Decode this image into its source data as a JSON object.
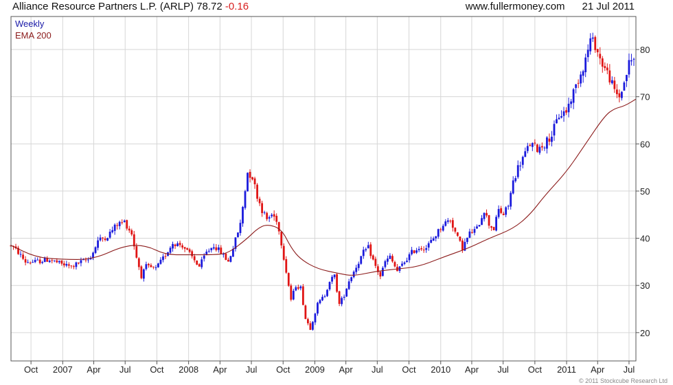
{
  "header": {
    "instrument": "Alliance Resource Partners L.P. (ARLP)",
    "last_price": "78.72",
    "change": "-0.16",
    "source": "www.fullermoney.com",
    "date": "21 Jul 2011"
  },
  "copyright": "© 2011 Stockcube Research Ltd",
  "colors": {
    "up": "#1a1adc",
    "down": "#e01414",
    "ema": "#8b1a1a",
    "grid": "#d6d6d6",
    "legend_weekly": "#1a1aa8",
    "legend_ema": "#8b1a1a"
  },
  "chart_data": {
    "type": "candlestick",
    "frequency": "Weekly",
    "x_start": "2006-08-04",
    "x_end": "2011-07-21",
    "ylim": [
      14,
      87
    ],
    "yticks": [
      20,
      30,
      40,
      50,
      60,
      70,
      80
    ],
    "grid": true,
    "legend": {
      "position": "top-left",
      "entries": [
        "Weekly",
        "EMA 200"
      ]
    },
    "x_ticks": [
      {
        "label": "Oct",
        "date": "2006-10-01"
      },
      {
        "label": "2007",
        "date": "2007-01-01"
      },
      {
        "label": "Apr",
        "date": "2007-04-01"
      },
      {
        "label": "Jul",
        "date": "2007-07-01"
      },
      {
        "label": "Oct",
        "date": "2007-10-01"
      },
      {
        "label": "2008",
        "date": "2008-01-01"
      },
      {
        "label": "Apr",
        "date": "2008-04-01"
      },
      {
        "label": "Jul",
        "date": "2008-07-01"
      },
      {
        "label": "Oct",
        "date": "2008-10-01"
      },
      {
        "label": "2009",
        "date": "2009-01-01"
      },
      {
        "label": "Apr",
        "date": "2009-04-01"
      },
      {
        "label": "Jul",
        "date": "2009-07-01"
      },
      {
        "label": "Oct",
        "date": "2009-10-01"
      },
      {
        "label": "2010",
        "date": "2010-01-01"
      },
      {
        "label": "Apr",
        "date": "2010-04-01"
      },
      {
        "label": "Jul",
        "date": "2010-07-01"
      },
      {
        "label": "Oct",
        "date": "2010-10-01"
      },
      {
        "label": "2011",
        "date": "2011-01-01"
      },
      {
        "label": "Apr",
        "date": "2011-04-01"
      },
      {
        "label": "Jul",
        "date": "2011-07-01"
      }
    ],
    "price_path": [
      [
        "2006-08-04",
        38.5
      ],
      [
        "2006-08-25",
        37
      ],
      [
        "2006-09-15",
        35
      ],
      [
        "2006-10-13",
        35
      ],
      [
        "2006-11-24",
        35.5
      ],
      [
        "2006-12-29",
        34.5
      ],
      [
        "2007-01-26",
        34
      ],
      [
        "2007-02-23",
        35
      ],
      [
        "2007-03-16",
        35.5
      ],
      [
        "2007-03-30",
        37
      ],
      [
        "2007-04-13",
        39.5
      ],
      [
        "2007-05-11",
        40.5
      ],
      [
        "2007-06-08",
        43
      ],
      [
        "2007-06-29",
        43.5
      ],
      [
        "2007-07-20",
        41
      ],
      [
        "2007-08-03",
        36
      ],
      [
        "2007-08-17",
        32
      ],
      [
        "2007-08-31",
        34
      ],
      [
        "2007-09-28",
        33.5
      ],
      [
        "2007-10-26",
        36.5
      ],
      [
        "2007-11-16",
        39
      ],
      [
        "2007-12-14",
        38.5
      ],
      [
        "2008-01-11",
        36
      ],
      [
        "2008-02-01",
        34
      ],
      [
        "2008-02-22",
        37
      ],
      [
        "2008-03-14",
        38.5
      ],
      [
        "2008-04-04",
        37
      ],
      [
        "2008-04-25",
        35
      ],
      [
        "2008-05-09",
        38
      ],
      [
        "2008-05-30",
        43
      ],
      [
        "2008-06-20",
        54
      ],
      [
        "2008-07-04",
        53
      ],
      [
        "2008-07-18",
        49
      ],
      [
        "2008-08-01",
        46
      ],
      [
        "2008-08-15",
        44
      ],
      [
        "2008-08-29",
        45
      ],
      [
        "2008-09-12",
        44
      ],
      [
        "2008-09-26",
        39
      ],
      [
        "2008-10-10",
        33
      ],
      [
        "2008-10-24",
        27
      ],
      [
        "2008-11-07",
        30
      ],
      [
        "2008-11-21",
        29.5
      ],
      [
        "2008-12-05",
        23
      ],
      [
        "2008-12-19",
        21
      ],
      [
        "2009-01-09",
        26
      ],
      [
        "2009-01-30",
        28
      ],
      [
        "2009-02-13",
        31
      ],
      [
        "2009-02-27",
        32
      ],
      [
        "2009-03-13",
        26
      ],
      [
        "2009-03-27",
        28
      ],
      [
        "2009-04-10",
        31
      ],
      [
        "2009-04-24",
        33
      ],
      [
        "2009-05-08",
        35
      ],
      [
        "2009-05-22",
        37
      ],
      [
        "2009-06-05",
        38
      ],
      [
        "2009-06-26",
        34
      ],
      [
        "2009-07-10",
        32
      ],
      [
        "2009-07-24",
        35
      ],
      [
        "2009-08-07",
        36
      ],
      [
        "2009-08-28",
        33
      ],
      [
        "2009-09-18",
        35
      ],
      [
        "2009-10-09",
        37
      ],
      [
        "2009-10-30",
        38
      ],
      [
        "2009-11-20",
        38
      ],
      [
        "2009-12-11",
        40
      ],
      [
        "2010-01-08",
        43
      ],
      [
        "2010-01-29",
        44
      ],
      [
        "2010-02-19",
        40
      ],
      [
        "2010-03-05",
        38
      ],
      [
        "2010-03-26",
        41
      ],
      [
        "2010-04-16",
        42
      ],
      [
        "2010-05-07",
        46
      ],
      [
        "2010-05-21",
        43
      ],
      [
        "2010-06-04",
        42
      ],
      [
        "2010-06-18",
        46
      ],
      [
        "2010-07-02",
        45
      ],
      [
        "2010-07-16",
        47
      ],
      [
        "2010-07-30",
        52
      ],
      [
        "2010-08-13",
        55
      ],
      [
        "2010-08-27",
        57
      ],
      [
        "2010-09-17",
        60
      ],
      [
        "2010-10-08",
        59
      ],
      [
        "2010-10-29",
        60
      ],
      [
        "2010-11-19",
        62
      ],
      [
        "2010-12-10",
        66
      ],
      [
        "2010-12-31",
        67
      ],
      [
        "2011-01-21",
        71
      ],
      [
        "2011-02-11",
        75
      ],
      [
        "2011-02-25",
        78
      ],
      [
        "2011-03-11",
        82
      ],
      [
        "2011-03-25",
        81
      ],
      [
        "2011-04-08",
        78
      ],
      [
        "2011-04-22",
        76
      ],
      [
        "2011-05-06",
        74
      ],
      [
        "2011-05-20",
        71
      ],
      [
        "2011-06-03",
        70
      ],
      [
        "2011-06-17",
        73
      ],
      [
        "2011-07-01",
        77
      ],
      [
        "2011-07-21",
        78.72
      ]
    ],
    "ema_path": [
      [
        "2006-08-04",
        38.5
      ],
      [
        "2006-10-13",
        36
      ],
      [
        "2006-12-29",
        35.5
      ],
      [
        "2007-03-30",
        35.5
      ],
      [
        "2007-06-29",
        38.5
      ],
      [
        "2007-08-31",
        38.5
      ],
      [
        "2007-10-26",
        36.5
      ],
      [
        "2008-01-11",
        36.5
      ],
      [
        "2008-03-14",
        36.5
      ],
      [
        "2008-04-25",
        36.8
      ],
      [
        "2008-06-20",
        40
      ],
      [
        "2008-07-18",
        42
      ],
      [
        "2008-08-15",
        43
      ],
      [
        "2008-09-26",
        42
      ],
      [
        "2008-10-24",
        38
      ],
      [
        "2008-11-21",
        35.5
      ],
      [
        "2009-01-09",
        33.5
      ],
      [
        "2009-03-13",
        32.5
      ],
      [
        "2009-04-24",
        32
      ],
      [
        "2009-06-26",
        33
      ],
      [
        "2009-08-28",
        33.5
      ],
      [
        "2009-10-30",
        34
      ],
      [
        "2010-01-08",
        36
      ],
      [
        "2010-03-26",
        38
      ],
      [
        "2010-05-21",
        40
      ],
      [
        "2010-07-30",
        42
      ],
      [
        "2010-09-17",
        45
      ],
      [
        "2010-10-29",
        49
      ],
      [
        "2010-12-31",
        54
      ],
      [
        "2011-02-25",
        60
      ],
      [
        "2011-04-22",
        66
      ],
      [
        "2011-05-20",
        67.5
      ],
      [
        "2011-06-17",
        68
      ],
      [
        "2011-07-21",
        69.5
      ]
    ]
  }
}
